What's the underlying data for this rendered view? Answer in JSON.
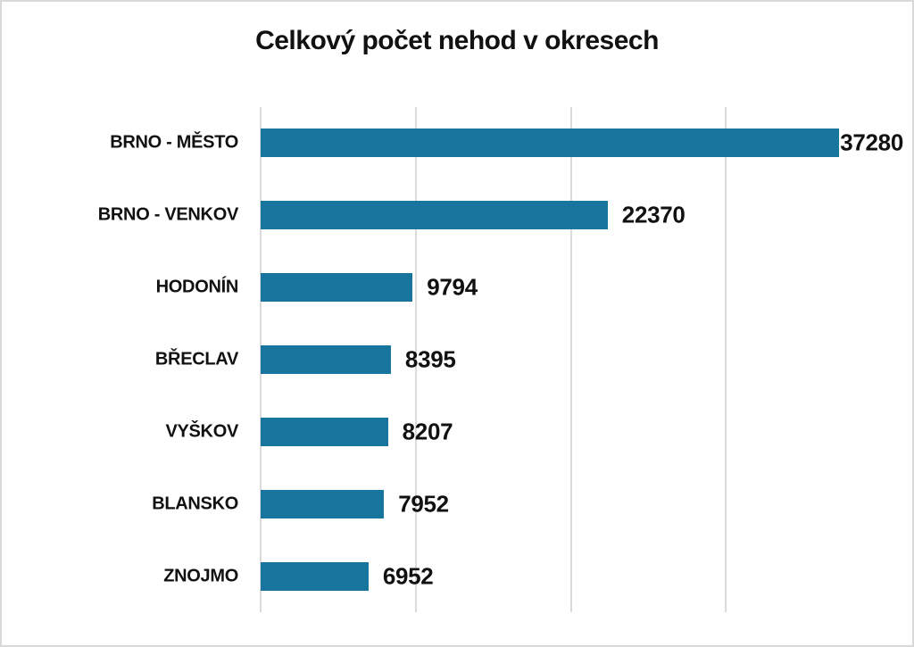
{
  "chart_data": {
    "type": "bar",
    "orientation": "horizontal",
    "title": "Celkový počet nehod v okresech",
    "categories": [
      "BRNO - MĚSTO",
      "BRNO - VENKOV",
      "HODONÍN",
      "BŘECLAV",
      "VYŠKOV",
      "BLANSKO",
      "ZNOJMO"
    ],
    "values": [
      37280,
      22370,
      9794,
      8395,
      8207,
      7952,
      6952
    ],
    "data_labels": [
      37280,
      22370,
      9794,
      8395,
      8207,
      7952,
      6952
    ],
    "xlabel": "",
    "ylabel": "",
    "xlim": [
      0,
      42000
    ],
    "gridline_step": 10000,
    "grid": "vertical-only",
    "legend": "none",
    "bar_color": "#17759E",
    "gridline_color": "#DBDBDB",
    "text_color": "#111111",
    "background_color": "#FFFFFF",
    "border_color": "#D9D9D9"
  }
}
